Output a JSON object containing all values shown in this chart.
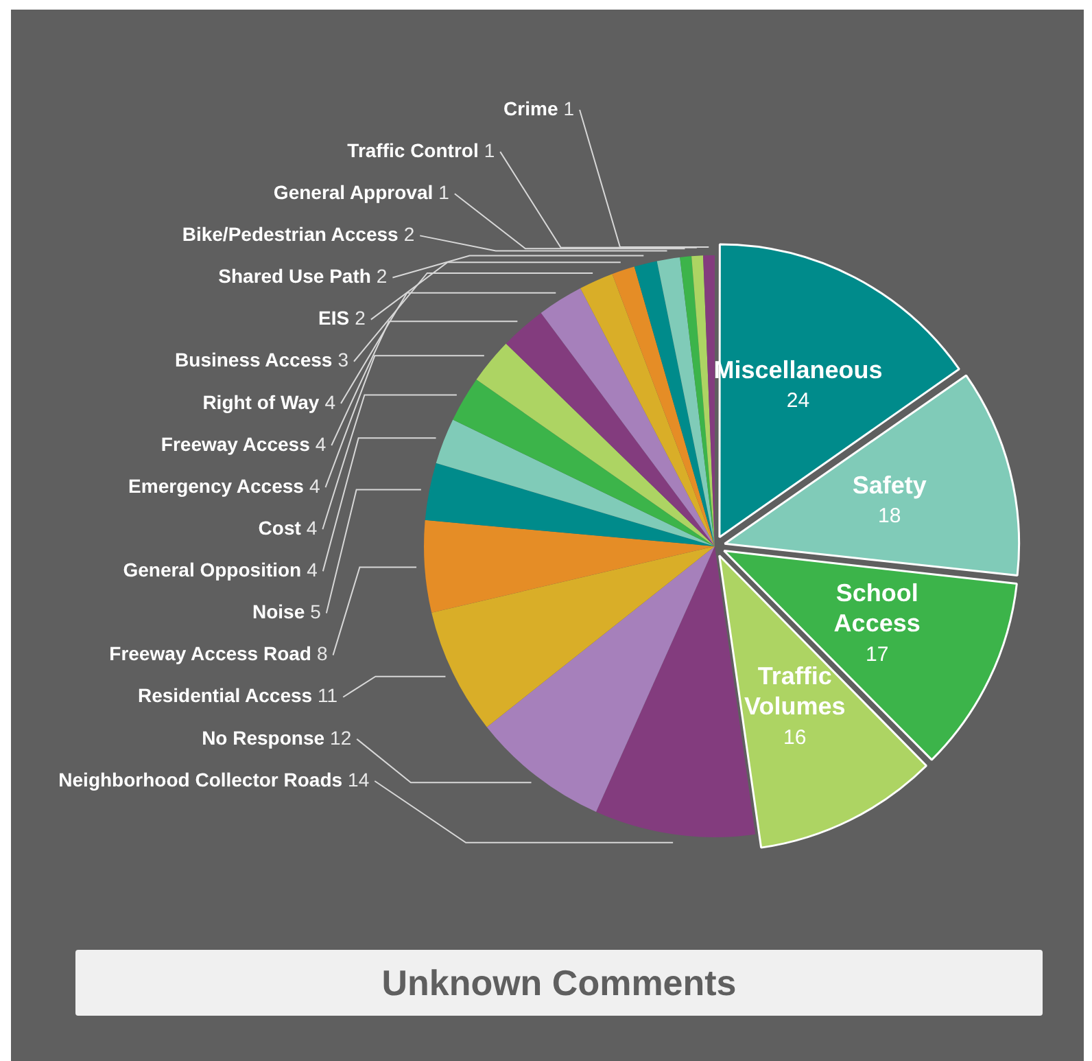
{
  "chart_data": {
    "type": "pie",
    "categories": [
      "Miscellaneous",
      "Safety",
      "School Access",
      "Traffic Volumes",
      "Neighborhood Collector Roads",
      "No Response",
      "Residential Access",
      "Freeway Access Road",
      "Noise",
      "General Opposition",
      "Cost",
      "Emergency Access",
      "Freeway Access",
      "Right of Way",
      "Business Access",
      "EIS",
      "Shared Use Path",
      "Bike/Pedestrian Access",
      "General Approval",
      "Traffic Control",
      "Crime"
    ],
    "values": [
      24,
      18,
      17,
      16,
      14,
      12,
      11,
      8,
      5,
      4,
      4,
      4,
      4,
      4,
      3,
      2,
      2,
      2,
      1,
      1,
      1
    ],
    "colors": [
      "#008b8b",
      "#80cbb8",
      "#3cb44a",
      "#add463",
      "#833c7e",
      "#a680bb",
      "#d9ae28",
      "#e58d26",
      "#008b8b",
      "#80cbb8",
      "#3cb44a",
      "#add463",
      "#833c7e",
      "#a680bb",
      "#d9ae28",
      "#e58d26",
      "#008b8b",
      "#80cbb8",
      "#3cb44a",
      "#add463",
      "#833c7e"
    ],
    "data_labels": true,
    "annotations": [
      "Unknown Comments"
    ]
  }
}
